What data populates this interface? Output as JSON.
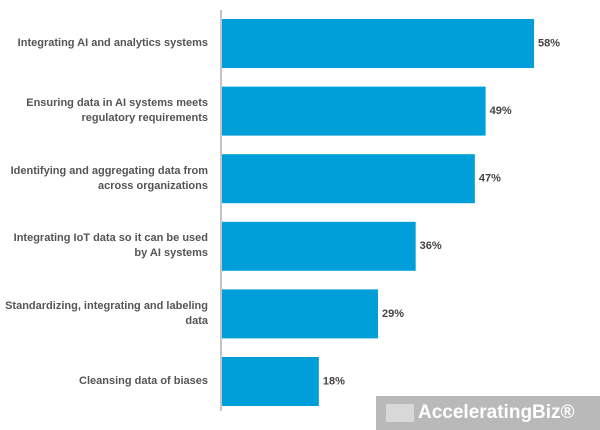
{
  "chart_data": {
    "type": "bar",
    "orientation": "horizontal",
    "categories": [
      "Integrating AI and analytics systems",
      "Ensuring data in AI systems meets regulatory requirements",
      "Identifying and aggregating data from across organizations",
      "Integrating IoT data so it can be used by AI systems",
      "Standardizing, integrating and labeling data",
      "Cleansing data of biases"
    ],
    "values": [
      58,
      49,
      47,
      36,
      29,
      18
    ],
    "value_labels": [
      "58%",
      "49%",
      "47%",
      "36%",
      "29%",
      "18%"
    ],
    "color": "#009fd9",
    "watermark": "AcceleratingBiz®"
  }
}
